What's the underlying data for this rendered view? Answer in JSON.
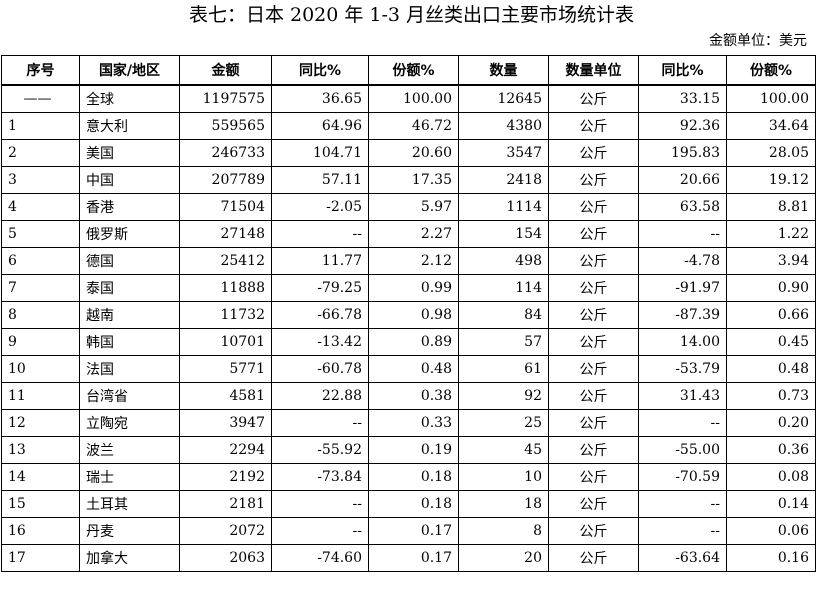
{
  "title": "表七：日本 2020 年 1-3 月丝类出口主要市场统计表",
  "unit_note": "金额单位：美元",
  "headers": [
    "序号",
    "国家/地区",
    "金额",
    "同比%",
    "份额%",
    "数量",
    "数量单位",
    "同比%",
    "份额%"
  ],
  "rows": [
    [
      "——",
      "全球",
      "1197575",
      "36.65",
      "100.00",
      "12645",
      "公斤",
      "33.15",
      "100.00"
    ],
    [
      "1",
      "意大利",
      "559565",
      "64.96",
      "46.72",
      "4380",
      "公斤",
      "92.36",
      "34.64"
    ],
    [
      "2",
      "美国",
      "246733",
      "104.71",
      "20.60",
      "3547",
      "公斤",
      "195.83",
      "28.05"
    ],
    [
      "3",
      "中国",
      "207789",
      "57.11",
      "17.35",
      "2418",
      "公斤",
      "20.66",
      "19.12"
    ],
    [
      "4",
      "香港",
      "71504",
      "-2.05",
      "5.97",
      "1114",
      "公斤",
      "63.58",
      "8.81"
    ],
    [
      "5",
      "俄罗斯",
      "27148",
      "--",
      "2.27",
      "154",
      "公斤",
      "--",
      "1.22"
    ],
    [
      "6",
      "德国",
      "25412",
      "11.77",
      "2.12",
      "498",
      "公斤",
      "-4.78",
      "3.94"
    ],
    [
      "7",
      "泰国",
      "11888",
      "-79.25",
      "0.99",
      "114",
      "公斤",
      "-91.97",
      "0.90"
    ],
    [
      "8",
      "越南",
      "11732",
      "-66.78",
      "0.98",
      "84",
      "公斤",
      "-87.39",
      "0.66"
    ],
    [
      "9",
      "韩国",
      "10701",
      "-13.42",
      "0.89",
      "57",
      "公斤",
      "14.00",
      "0.45"
    ],
    [
      "10",
      "法国",
      "5771",
      "-60.78",
      "0.48",
      "61",
      "公斤",
      "-53.79",
      "0.48"
    ],
    [
      "11",
      "台湾省",
      "4581",
      "22.88",
      "0.38",
      "92",
      "公斤",
      "31.43",
      "0.73"
    ],
    [
      "12",
      "立陶宛",
      "3947",
      "--",
      "0.33",
      "25",
      "公斤",
      "--",
      "0.20"
    ],
    [
      "13",
      "波兰",
      "2294",
      "-55.92",
      "0.19",
      "45",
      "公斤",
      "-55.00",
      "0.36"
    ],
    [
      "14",
      "瑞士",
      "2192",
      "-73.84",
      "0.18",
      "10",
      "公斤",
      "-70.59",
      "0.08"
    ],
    [
      "15",
      "土耳其",
      "2181",
      "--",
      "0.18",
      "18",
      "公斤",
      "--",
      "0.14"
    ],
    [
      "16",
      "丹麦",
      "2072",
      "--",
      "0.17",
      "8",
      "公斤",
      "--",
      "0.06"
    ],
    [
      "17",
      "加拿大",
      "2063",
      "-74.60",
      "0.17",
      "20",
      "公斤",
      "-63.64",
      "0.16"
    ]
  ]
}
